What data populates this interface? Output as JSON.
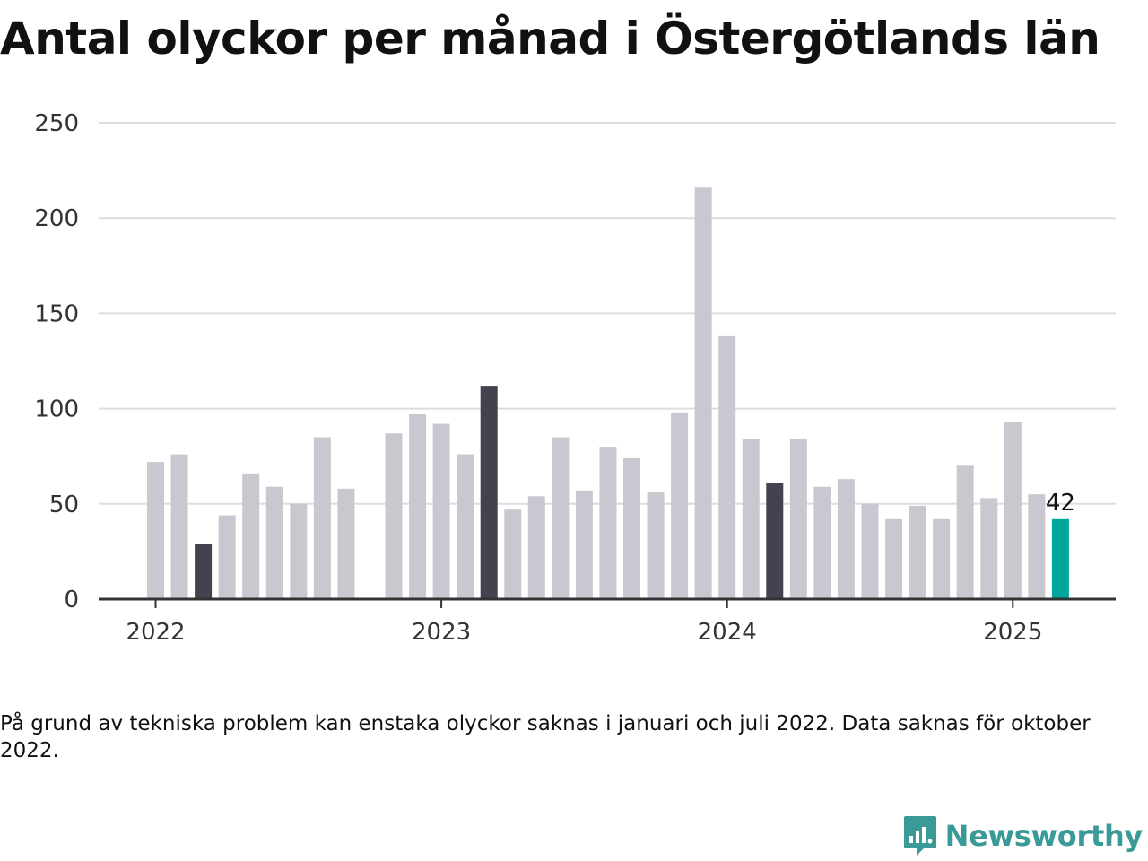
{
  "title": "Antal olyckor per månad i Östergötlands län",
  "note": "På grund av tekniska problem kan enstaka olyckor saknas i januari och juli 2022. Data saknas för oktober 2022.",
  "brand": {
    "name": "Newsworthy",
    "logo_icon": "bar-chart-speech-bubble-icon"
  },
  "colors": {
    "default_bar": "#c9c8d0",
    "march_bar": "#43424e",
    "latest_bar": "#00a59b",
    "grid": "#dddddd",
    "axis": "#333333"
  },
  "chart_data": {
    "type": "bar",
    "title": "Antal olyckor per månad i Östergötlands län",
    "xlabel": "",
    "ylabel": "",
    "ylim": [
      0,
      250
    ],
    "yticks": [
      0,
      50,
      100,
      150,
      200,
      250
    ],
    "grid": true,
    "legend": "none",
    "xticks": [
      "2022",
      "2023",
      "2024",
      "2025"
    ],
    "categories": [
      "2022-01",
      "2022-02",
      "2022-03",
      "2022-04",
      "2022-05",
      "2022-06",
      "2022-07",
      "2022-08",
      "2022-09",
      "2022-10",
      "2022-11",
      "2022-12",
      "2023-01",
      "2023-02",
      "2023-03",
      "2023-04",
      "2023-05",
      "2023-06",
      "2023-07",
      "2023-08",
      "2023-09",
      "2023-10",
      "2023-11",
      "2023-12",
      "2024-01",
      "2024-02",
      "2024-03",
      "2024-04",
      "2024-05",
      "2024-06",
      "2024-07",
      "2024-08",
      "2024-09",
      "2024-10",
      "2024-11",
      "2024-12",
      "2025-01",
      "2025-02",
      "2025-03"
    ],
    "values": [
      72,
      76,
      29,
      44,
      66,
      59,
      50,
      85,
      58,
      null,
      87,
      97,
      92,
      76,
      112,
      47,
      54,
      85,
      57,
      80,
      74,
      56,
      98,
      216,
      138,
      84,
      61,
      84,
      59,
      63,
      50,
      42,
      49,
      42,
      70,
      53,
      93,
      55,
      42
    ],
    "highlight_month": "03",
    "latest_label": "42"
  }
}
